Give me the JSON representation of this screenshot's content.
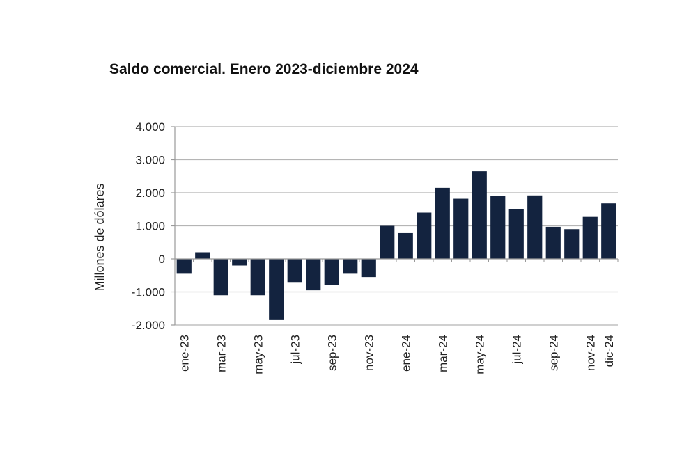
{
  "chart_data": {
    "type": "bar",
    "title": "Saldo comercial. Enero 2023-diciembre 2024",
    "xlabel": "",
    "ylabel": "Millones de dólares",
    "ylim": [
      -2000,
      4000
    ],
    "yticks": [
      "4.000",
      "3.000",
      "2.000",
      "1.000",
      "0",
      "-1.000",
      "-2.000"
    ],
    "ytick_values": [
      4000,
      3000,
      2000,
      1000,
      0,
      -1000,
      -2000
    ],
    "grid": true,
    "legend": "none",
    "bar_color": "#13233f",
    "categories": [
      "ene-23",
      "feb-23",
      "mar-23",
      "abr-23",
      "may-23",
      "jun-23",
      "jul-23",
      "ago-23",
      "sep-23",
      "oct-23",
      "nov-23",
      "dic-23",
      "ene-24",
      "feb-24",
      "mar-24",
      "abr-24",
      "may-24",
      "jun-24",
      "jul-24",
      "ago-24",
      "sep-24",
      "oct-24",
      "nov-24",
      "dic-24"
    ],
    "xtick_labels": [
      "ene-23",
      "mar-23",
      "may-23",
      "jul-23",
      "sep-23",
      "nov-23",
      "ene-24",
      "mar-24",
      "may-24",
      "jul-24",
      "sep-24",
      "nov-24",
      "dic-24"
    ],
    "values": [
      -450,
      200,
      -1100,
      -200,
      -1100,
      -1850,
      -700,
      -950,
      -800,
      -450,
      -550,
      1000,
      780,
      1400,
      2150,
      1820,
      2650,
      1900,
      1500,
      1920,
      970,
      900,
      1270,
      1680
    ]
  }
}
